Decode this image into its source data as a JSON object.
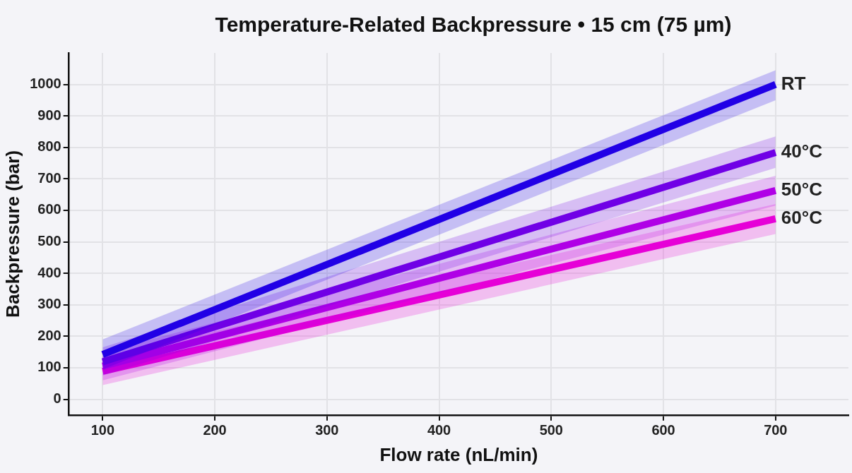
{
  "chart_data": {
    "type": "line",
    "title": "Temperature-Related Backpressure • 15 cm (75 µm)",
    "xlabel": "Flow rate (nL/min)",
    "ylabel": "Backpressure (bar)",
    "x": [
      100,
      700
    ],
    "series": [
      {
        "name": "RT",
        "color": "#2200e6",
        "values": [
          142,
          1000
        ],
        "lower": [
          95,
          950
        ],
        "upper": [
          190,
          1045
        ]
      },
      {
        "name": "40°C",
        "color": "#7000e6",
        "values": [
          119,
          784
        ],
        "lower": [
          75,
          735
        ],
        "upper": [
          165,
          835
        ]
      },
      {
        "name": "50°C",
        "color": "#b000e6",
        "values": [
          105,
          663
        ],
        "lower": [
          60,
          615
        ],
        "upper": [
          150,
          710
        ]
      },
      {
        "name": "60°C",
        "color": "#e600d8",
        "values": [
          89,
          573
        ],
        "lower": [
          45,
          525
        ],
        "upper": [
          135,
          620
        ]
      }
    ],
    "xlim": [
      70,
      765
    ],
    "xticks": [
      100,
      200,
      300,
      400,
      500,
      600,
      700
    ],
    "ylim": [
      -50,
      1100
    ],
    "yticks": [
      0,
      100,
      200,
      300,
      400,
      500,
      600,
      700,
      800,
      900,
      1000
    ],
    "grid": true,
    "legend": false,
    "marker": "none",
    "line_style": "solid"
  }
}
